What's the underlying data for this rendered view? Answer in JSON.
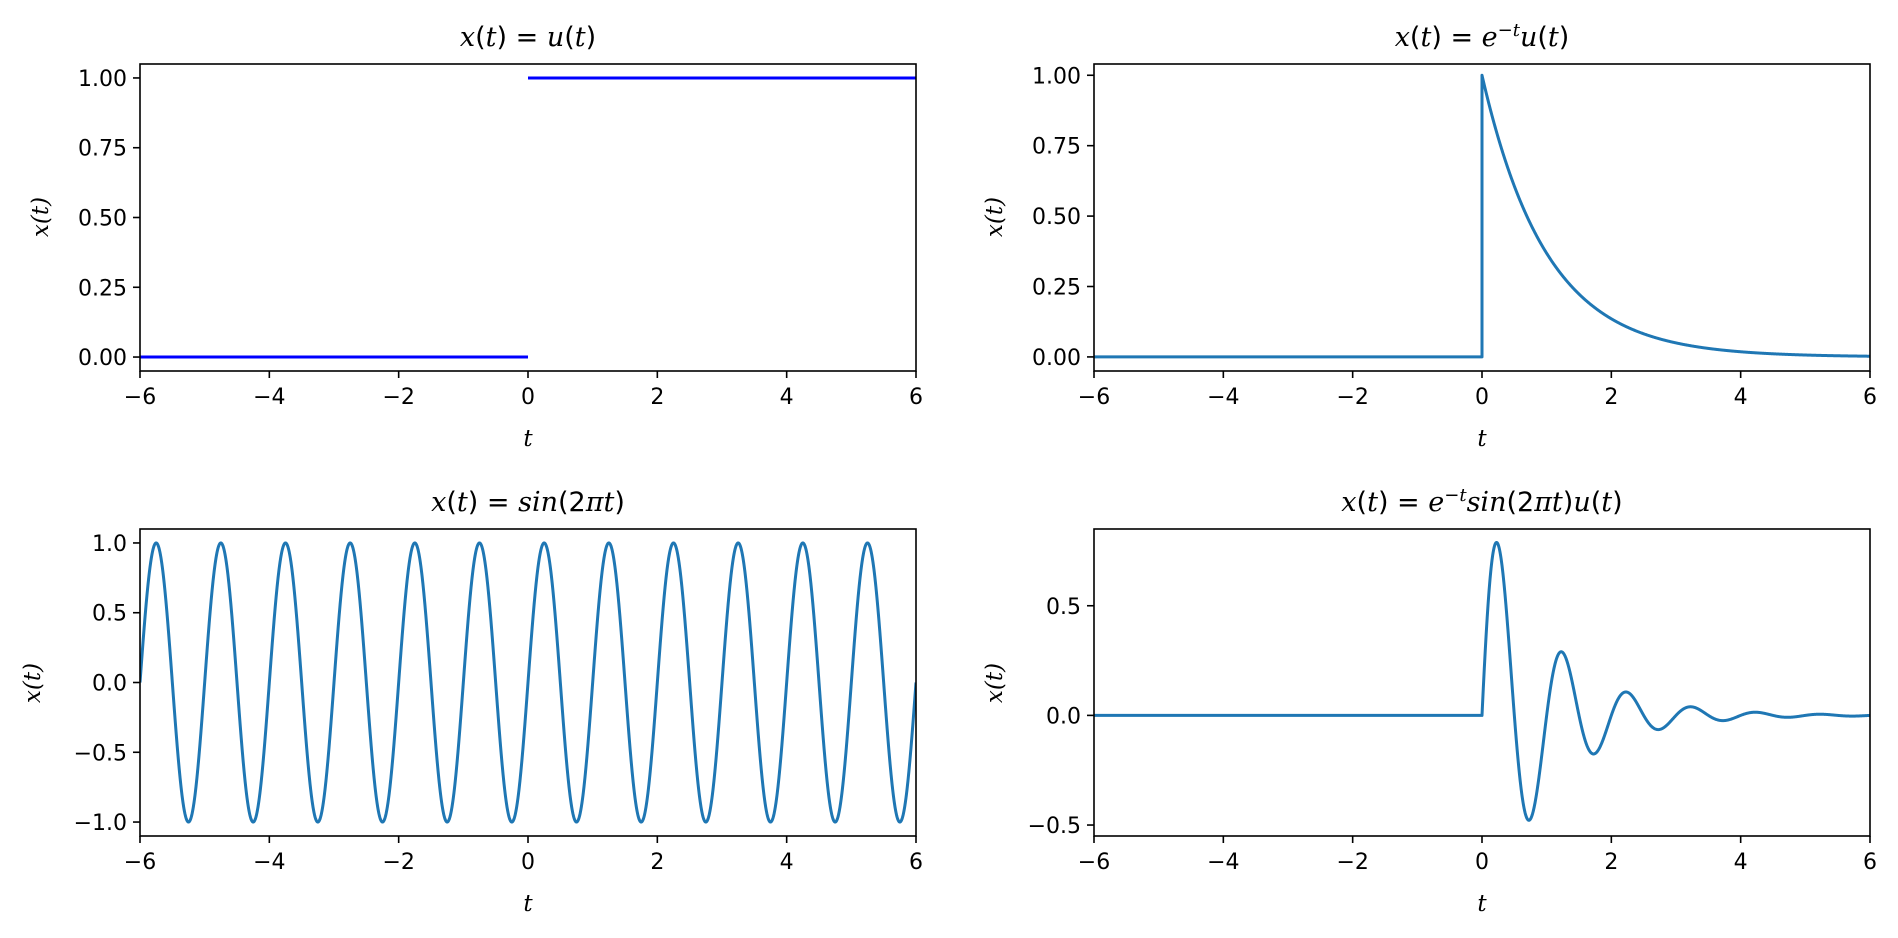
{
  "chart_data": [
    {
      "type": "line",
      "title": "x(t) = u(t)",
      "xlabel": "t",
      "ylabel": "x(t)",
      "xlim": [
        -6,
        6
      ],
      "ylim": [
        -0.05,
        1.05
      ],
      "xticks": [
        -6,
        -4,
        -2,
        0,
        2,
        4,
        6
      ],
      "xtick_labels": [
        "−6",
        "−4",
        "−2",
        "0",
        "2",
        "4",
        "6"
      ],
      "yticks": [
        0,
        0.25,
        0.5,
        0.75,
        1.0
      ],
      "ytick_labels": [
        "0.00",
        "0.25",
        "0.50",
        "0.75",
        "1.00"
      ],
      "color": "#0000ff",
      "function": "step",
      "series": [
        {
          "x": [
            -6,
            0
          ],
          "y": [
            0,
            0
          ]
        },
        {
          "x": [
            0,
            6
          ],
          "y": [
            1,
            1
          ]
        }
      ]
    },
    {
      "type": "line",
      "title": "x(t) = e^{−t}u(t)",
      "xlabel": "t",
      "ylabel": "x(t)",
      "xlim": [
        -6,
        6
      ],
      "ylim": [
        -0.05,
        1.04
      ],
      "xticks": [
        -6,
        -4,
        -2,
        0,
        2,
        4,
        6
      ],
      "xtick_labels": [
        "−6",
        "−4",
        "−2",
        "0",
        "2",
        "4",
        "6"
      ],
      "yticks": [
        0,
        0.25,
        0.5,
        0.75,
        1.0
      ],
      "ytick_labels": [
        "0.00",
        "0.25",
        "0.50",
        "0.75",
        "1.00"
      ],
      "color": "#1f77b4",
      "function": "decay",
      "series": [
        {
          "x": [
            -6,
            0,
            0.5,
            1,
            1.5,
            2,
            3,
            4,
            5,
            6
          ],
          "y": [
            0,
            0,
            0.61,
            0.37,
            0.22,
            0.14,
            0.05,
            0.018,
            0.007,
            0.002
          ]
        }
      ]
    },
    {
      "type": "line",
      "title": "x(t) = sin(2πt)",
      "xlabel": "t",
      "ylabel": "x(t)",
      "xlim": [
        -6,
        6
      ],
      "ylim": [
        -1.1,
        1.1
      ],
      "xticks": [
        -6,
        -4,
        -2,
        0,
        2,
        4,
        6
      ],
      "xtick_labels": [
        "−6",
        "−4",
        "−2",
        "0",
        "2",
        "4",
        "6"
      ],
      "yticks": [
        -1.0,
        -0.5,
        0.0,
        0.5,
        1.0
      ],
      "ytick_labels": [
        "−1.0",
        "−0.5",
        "0.0",
        "0.5",
        "1.0"
      ],
      "color": "#1f77b4",
      "function": "sine",
      "series": [
        {
          "x": [
            -6,
            -5.75,
            -5.5,
            -5.25,
            -5,
            0,
            0.25,
            0.5,
            0.75,
            1,
            6
          ],
          "y": [
            0,
            1,
            0,
            -1,
            0,
            0,
            1,
            0,
            -1,
            0,
            0
          ]
        }
      ]
    },
    {
      "type": "line",
      "title": "x(t) = e^{−t}sin(2πt)u(t)",
      "xlabel": "t",
      "ylabel": "x(t)",
      "xlim": [
        -6,
        6
      ],
      "ylim": [
        -0.55,
        0.85
      ],
      "xticks": [
        -6,
        -4,
        -2,
        0,
        2,
        4,
        6
      ],
      "xtick_labels": [
        "−6",
        "−4",
        "−2",
        "0",
        "2",
        "4",
        "6"
      ],
      "yticks": [
        -0.5,
        0.0,
        0.5
      ],
      "ytick_labels": [
        "−0.5",
        "0.0",
        "0.5"
      ],
      "color": "#1f77b4",
      "function": "damped",
      "series": [
        {
          "x": [
            -6,
            0,
            0.24,
            0.74,
            1.24,
            1.74,
            2.24,
            2.74,
            6
          ],
          "y": [
            0,
            0,
            0.78,
            -0.47,
            0.29,
            -0.17,
            0.1,
            -0.06,
            0
          ]
        }
      ]
    }
  ]
}
